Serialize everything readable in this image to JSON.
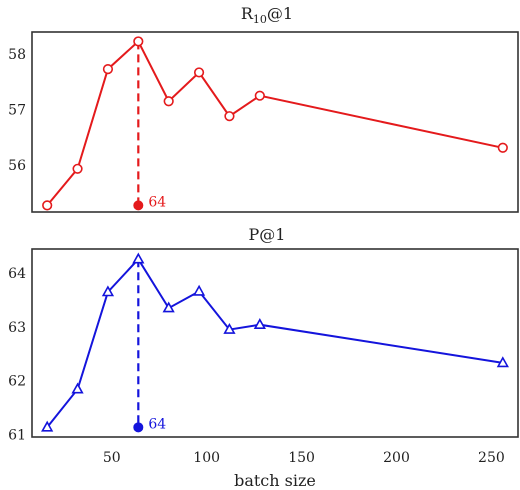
{
  "chart_data": [
    {
      "type": "line",
      "title": "R",
      "title_sub": "10",
      "title_suffix": "@1",
      "color": "#e41a1c",
      "marker": "circle",
      "x": [
        16,
        32,
        48,
        64,
        80,
        96,
        112,
        128,
        256
      ],
      "y": [
        55.27,
        55.93,
        57.73,
        58.23,
        57.15,
        57.67,
        56.88,
        57.25,
        56.31
      ],
      "xlim": [
        8,
        264
      ],
      "ylim": [
        55.15,
        58.4
      ],
      "yticks": [
        56,
        57,
        58
      ],
      "xticks": [],
      "highlight": {
        "x": 64,
        "y_top": 58.23,
        "y_bottom": 55.27,
        "label": "64"
      }
    },
    {
      "type": "line",
      "title": "P@1",
      "color": "#1414dc",
      "marker": "triangle",
      "x": [
        16,
        32,
        48,
        64,
        80,
        96,
        112,
        128,
        256
      ],
      "y": [
        61.13,
        61.84,
        63.65,
        64.26,
        63.35,
        63.66,
        62.95,
        63.04,
        62.33
      ],
      "xlim": [
        8,
        264
      ],
      "ylim": [
        60.95,
        64.45
      ],
      "yticks": [
        61,
        62,
        63,
        64
      ],
      "xticks": [
        50,
        100,
        150,
        200,
        250
      ],
      "xlabel": "batch size",
      "highlight": {
        "x": 64,
        "y_top": 64.26,
        "y_bottom": 61.13,
        "label": "64"
      }
    }
  ]
}
